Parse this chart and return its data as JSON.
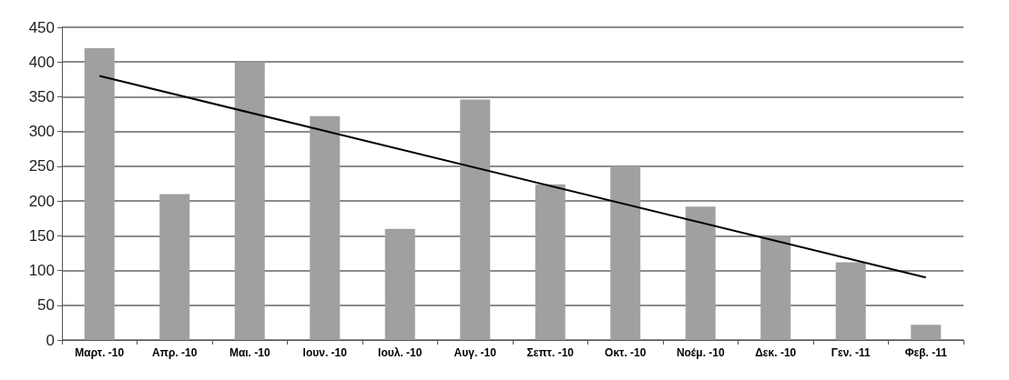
{
  "chart_data": {
    "type": "bar",
    "categories": [
      "Μαρτ. -10",
      "Απρ. -10",
      "Μαι. -10",
      "Ιουν. -10",
      "Ιουλ. -10",
      "Αυγ. -10",
      "Σεπτ. -10",
      "Οκτ. -10",
      "Νοέμ. -10",
      "Δεκ. -10",
      "Γεν. -11",
      "Φεβ. -11"
    ],
    "series": [
      {
        "color": "#a0a0a0",
        "values": [
          420,
          210,
          400,
          322,
          160,
          346,
          224,
          250,
          192,
          150,
          112,
          22
        ]
      },
      {
        "type": "line",
        "color": "#000000",
        "values": [
          380,
          null,
          null,
          null,
          null,
          null,
          null,
          null,
          null,
          null,
          null,
          90
        ]
      }
    ],
    "ylim": [
      0,
      450
    ],
    "yticks": [
      0,
      50,
      100,
      150,
      200,
      250,
      300,
      350,
      400,
      450
    ],
    "grid": "y",
    "marker": "none",
    "line_style": "solid"
  }
}
